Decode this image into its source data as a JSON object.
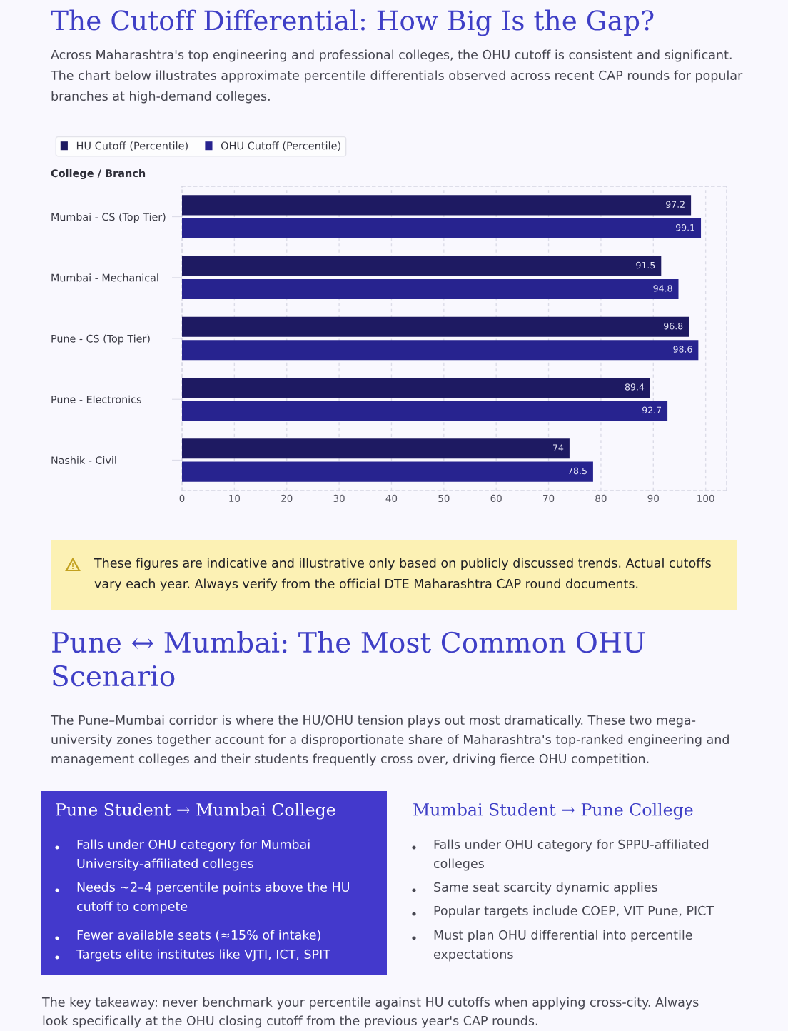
{
  "chart_data": [
    {
      "type": "bar",
      "orientation": "horizontal",
      "title": "The Cutoff Differential: How Big Is the Gap?",
      "subtitle": "Across Maharashtra's top engineering and professional colleges, the OHU cutoff is consistent and significant.\nThe chart below illustrates approximate percentile differentials observed across recent CAP rounds for popular\nbranches at high-demand colleges.",
      "ylabel": "College / Branch",
      "categories": [
        "Mumbai - CS (Top Tier)",
        "Mumbai - Mechanical",
        "Pune - CS (Top Tier)",
        "Pune - Electronics",
        "Nashik - Civil"
      ],
      "series": [
        {
          "name": "HU Cutoff (Percentile)",
          "color": "#1e1a62",
          "values": [
            97.2,
            91.5,
            96.8,
            89.4,
            74
          ]
        },
        {
          "name": "OHU Cutoff (Percentile)",
          "color": "#27238f",
          "values": [
            99.1,
            94.8,
            98.6,
            92.7,
            78.5
          ]
        }
      ],
      "xlim": [
        0,
        104
      ],
      "xticks": [
        0,
        10,
        20,
        30,
        40,
        50,
        60,
        70,
        80,
        90,
        100
      ],
      "grid": "x",
      "legend": "top left",
      "data_labels": true
    },
    {
      "type": "other",
      "annotations": [
        "These figures are indicative and illustrative only based on publicly discussed trends. Actual cutoffs\nvary each year. Always verify from the official DTE Maharashtra CAP round documents."
      ]
    },
    {
      "type": "other",
      "title": "Pune ↔ Mumbai: The Most Common OHU\nScenario",
      "subtitle": "The Pune–Mumbai corridor is where the HU/OHU tension plays out most dramatically. These two mega-\nuniversity zones together account for a disproportionate share of Maharashtra's top-ranked engineering and\nmanagement colleges and their students frequently cross over, driving fierce OHU competition."
    },
    {
      "type": "other",
      "title": "Pune Student → Mumbai College",
      "annotations": [
        "Falls under OHU category for Mumbai\nUniversity-affiliated colleges",
        "Needs ~2–4 percentile points above the HU\ncutoff to compete",
        "Fewer available seats (≈15% of intake)",
        "Targets elite institutes like VJTI, ICT, SPIT"
      ]
    },
    {
      "type": "other",
      "title": "Mumbai Student → Pune College",
      "annotations": [
        "Falls under OHU category for SPPU-affiliated\ncolleges",
        "Same seat scarcity dynamic applies",
        "Popular targets include COEP, VIT Pune, PICT",
        "Must plan OHU differential into percentile\nexpectations"
      ]
    },
    {
      "type": "other",
      "annotations": [
        "The key takeaway: never benchmark your percentile against HU cutoffs when applying cross-city. Always\nlook specifically at the OHU closing cutoff from the previous year's CAP rounds."
      ]
    }
  ]
}
